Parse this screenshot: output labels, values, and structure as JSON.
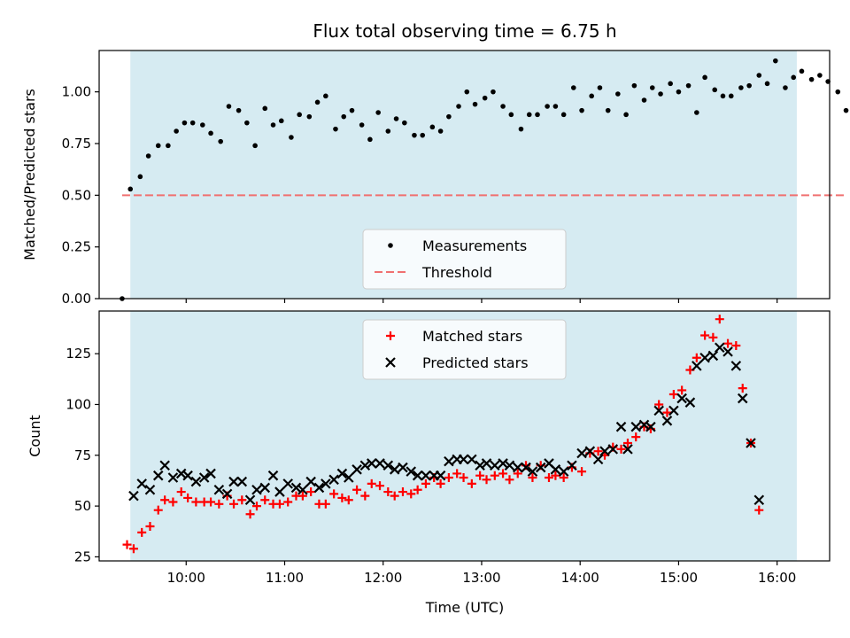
{
  "chart_data": [
    {
      "type": "scatter",
      "title": "Flux total observing time = 6.75 h",
      "ylabel": "Matched/Predicted stars",
      "ylim": [
        0,
        1.2
      ],
      "xlim": [
        "09:07",
        "16:32"
      ],
      "yticks": [
        "0.00",
        "0.25",
        "0.50",
        "0.75",
        "1.00"
      ],
      "observing_window": [
        "09:26",
        "16:12"
      ],
      "series": [
        {
          "name": "Measurements",
          "marker": "dot",
          "color": "#000000",
          "points": [
            [
              "09:21",
              0.0
            ],
            [
              "09:26",
              0.53
            ],
            [
              "09:32",
              0.59
            ],
            [
              "09:37",
              0.69
            ],
            [
              "09:43",
              0.74
            ],
            [
              "09:49",
              0.74
            ],
            [
              "09:54",
              0.81
            ],
            [
              "09:59",
              0.85
            ],
            [
              "10:04",
              0.85
            ],
            [
              "10:10",
              0.84
            ],
            [
              "10:15",
              0.8
            ],
            [
              "10:21",
              0.76
            ],
            [
              "10:26",
              0.93
            ],
            [
              "10:32",
              0.91
            ],
            [
              "10:37",
              0.85
            ],
            [
              "10:42",
              0.74
            ],
            [
              "10:48",
              0.92
            ],
            [
              "10:53",
              0.84
            ],
            [
              "10:58",
              0.86
            ],
            [
              "11:04",
              0.78
            ],
            [
              "11:09",
              0.89
            ],
            [
              "11:15",
              0.88
            ],
            [
              "11:20",
              0.95
            ],
            [
              "11:25",
              0.98
            ],
            [
              "11:31",
              0.82
            ],
            [
              "11:36",
              0.88
            ],
            [
              "11:41",
              0.91
            ],
            [
              "11:47",
              0.84
            ],
            [
              "11:52",
              0.77
            ],
            [
              "11:57",
              0.9
            ],
            [
              "12:03",
              0.81
            ],
            [
              "12:08",
              0.87
            ],
            [
              "12:13",
              0.85
            ],
            [
              "12:19",
              0.79
            ],
            [
              "12:24",
              0.79
            ],
            [
              "12:30",
              0.83
            ],
            [
              "12:35",
              0.81
            ],
            [
              "12:40",
              0.88
            ],
            [
              "12:46",
              0.93
            ],
            [
              "12:51",
              1.0
            ],
            [
              "12:56",
              0.94
            ],
            [
              "13:02",
              0.97
            ],
            [
              "13:07",
              1.0
            ],
            [
              "13:13",
              0.93
            ],
            [
              "13:18",
              0.89
            ],
            [
              "13:24",
              0.82
            ],
            [
              "13:29",
              0.89
            ],
            [
              "13:34",
              0.89
            ],
            [
              "13:40",
              0.93
            ],
            [
              "13:45",
              0.93
            ],
            [
              "13:50",
              0.89
            ],
            [
              "13:56",
              1.02
            ],
            [
              "14:01",
              0.91
            ],
            [
              "14:07",
              0.98
            ],
            [
              "14:12",
              1.02
            ],
            [
              "14:17",
              0.91
            ],
            [
              "14:23",
              0.99
            ],
            [
              "14:28",
              0.89
            ],
            [
              "14:33",
              1.03
            ],
            [
              "14:39",
              0.96
            ],
            [
              "14:44",
              1.02
            ],
            [
              "14:49",
              0.99
            ],
            [
              "14:55",
              1.04
            ],
            [
              "15:00",
              1.0
            ],
            [
              "15:06",
              1.03
            ],
            [
              "15:11",
              0.9
            ],
            [
              "15:16",
              1.07
            ],
            [
              "15:22",
              1.01
            ],
            [
              "15:27",
              0.98
            ],
            [
              "15:32",
              0.98
            ],
            [
              "15:38",
              1.02
            ],
            [
              "15:43",
              1.03
            ],
            [
              "15:49",
              1.08
            ],
            [
              "15:54",
              1.04
            ],
            [
              "15:59",
              1.15
            ],
            [
              "16:05",
              1.02
            ],
            [
              "16:10",
              1.07
            ],
            [
              "16:15",
              1.1
            ],
            [
              "16:21",
              1.06
            ],
            [
              "16:26",
              1.08
            ],
            [
              "16:31",
              1.05
            ],
            [
              "16:37",
              1.0
            ],
            [
              "16:42",
              0.91
            ]
          ]
        },
        {
          "name": "Threshold",
          "style": "dashed-line",
          "color": "#f07070",
          "x": [
            "09:21",
            "16:42"
          ],
          "y": 0.5
        }
      ],
      "legend": "lower-center",
      "grid": false
    },
    {
      "type": "scatter",
      "xlabel": "Time (UTC)",
      "ylabel": "Count",
      "ylim": [
        23,
        146
      ],
      "xlim": [
        "09:07",
        "16:32"
      ],
      "xticks": [
        "10:00",
        "11:00",
        "12:00",
        "13:00",
        "14:00",
        "15:00",
        "16:00"
      ],
      "yticks": [
        "25",
        "50",
        "75",
        "100",
        "125"
      ],
      "observing_window": [
        "09:26",
        "16:12"
      ],
      "series": [
        {
          "name": "Matched stars",
          "marker": "plus",
          "color": "#ff0000",
          "points": [
            [
              "09:24",
              31
            ],
            [
              "09:28",
              29
            ],
            [
              "09:33",
              37
            ],
            [
              "09:38",
              40
            ],
            [
              "09:43",
              48
            ],
            [
              "09:47",
              53
            ],
            [
              "09:52",
              52
            ],
            [
              "09:57",
              57
            ],
            [
              "10:01",
              54
            ],
            [
              "10:06",
              52
            ],
            [
              "10:11",
              52
            ],
            [
              "10:15",
              52
            ],
            [
              "10:20",
              51
            ],
            [
              "10:25",
              55
            ],
            [
              "10:29",
              51
            ],
            [
              "10:34",
              53
            ],
            [
              "10:39",
              46
            ],
            [
              "10:43",
              50
            ],
            [
              "10:48",
              53
            ],
            [
              "10:53",
              51
            ],
            [
              "10:57",
              51
            ],
            [
              "11:02",
              52
            ],
            [
              "11:07",
              55
            ],
            [
              "11:11",
              55
            ],
            [
              "11:16",
              57
            ],
            [
              "11:21",
              51
            ],
            [
              "11:25",
              51
            ],
            [
              "11:30",
              56
            ],
            [
              "11:35",
              54
            ],
            [
              "11:39",
              53
            ],
            [
              "11:44",
              58
            ],
            [
              "11:49",
              55
            ],
            [
              "11:53",
              61
            ],
            [
              "11:58",
              60
            ],
            [
              "12:03",
              57
            ],
            [
              "12:07",
              55
            ],
            [
              "12:12",
              57
            ],
            [
              "12:17",
              56
            ],
            [
              "12:21",
              58
            ],
            [
              "12:26",
              61
            ],
            [
              "12:31",
              64
            ],
            [
              "12:35",
              61
            ],
            [
              "12:40",
              64
            ],
            [
              "12:45",
              66
            ],
            [
              "12:49",
              64
            ],
            [
              "12:54",
              61
            ],
            [
              "12:59",
              65
            ],
            [
              "13:03",
              63
            ],
            [
              "13:08",
              65
            ],
            [
              "13:13",
              66
            ],
            [
              "13:17",
              63
            ],
            [
              "13:22",
              66
            ],
            [
              "13:27",
              70
            ],
            [
              "13:31",
              64
            ],
            [
              "13:36",
              70
            ],
            [
              "13:41",
              64
            ],
            [
              "13:45",
              65
            ],
            [
              "13:50",
              64
            ],
            [
              "13:55",
              69
            ],
            [
              "14:01",
              67
            ],
            [
              "14:06",
              76
            ],
            [
              "14:11",
              77
            ],
            [
              "14:15",
              75
            ],
            [
              "14:20",
              79
            ],
            [
              "14:25",
              78
            ],
            [
              "14:29",
              81
            ],
            [
              "14:34",
              84
            ],
            [
              "14:39",
              89
            ],
            [
              "14:43",
              88
            ],
            [
              "14:48",
              100
            ],
            [
              "14:53",
              96
            ],
            [
              "14:57",
              105
            ],
            [
              "15:02",
              107
            ],
            [
              "15:07",
              117
            ],
            [
              "15:11",
              123
            ],
            [
              "15:16",
              134
            ],
            [
              "15:21",
              133
            ],
            [
              "15:25",
              142
            ],
            [
              "15:30",
              130
            ],
            [
              "15:35",
              129
            ],
            [
              "15:39",
              108
            ],
            [
              "15:44",
              81
            ],
            [
              "15:49",
              48
            ]
          ]
        },
        {
          "name": "Predicted stars",
          "marker": "x",
          "color": "#000000",
          "points": [
            [
              "09:28",
              55
            ],
            [
              "09:33",
              61
            ],
            [
              "09:38",
              58
            ],
            [
              "09:43",
              65
            ],
            [
              "09:47",
              70
            ],
            [
              "09:52",
              64
            ],
            [
              "09:57",
              66
            ],
            [
              "10:01",
              65
            ],
            [
              "10:06",
              62
            ],
            [
              "10:11",
              64
            ],
            [
              "10:15",
              66
            ],
            [
              "10:20",
              58
            ],
            [
              "10:25",
              56
            ],
            [
              "10:29",
              62
            ],
            [
              "10:34",
              62
            ],
            [
              "10:39",
              53
            ],
            [
              "10:43",
              58
            ],
            [
              "10:48",
              59
            ],
            [
              "10:53",
              65
            ],
            [
              "10:57",
              57
            ],
            [
              "11:02",
              61
            ],
            [
              "11:07",
              59
            ],
            [
              "11:11",
              58
            ],
            [
              "11:16",
              62
            ],
            [
              "11:21",
              59
            ],
            [
              "11:25",
              61
            ],
            [
              "11:30",
              63
            ],
            [
              "11:35",
              66
            ],
            [
              "11:39",
              64
            ],
            [
              "11:44",
              68
            ],
            [
              "11:49",
              70
            ],
            [
              "11:53",
              71
            ],
            [
              "11:58",
              71
            ],
            [
              "12:03",
              70
            ],
            [
              "12:07",
              68
            ],
            [
              "12:12",
              69
            ],
            [
              "12:17",
              67
            ],
            [
              "12:21",
              65
            ],
            [
              "12:26",
              65
            ],
            [
              "12:31",
              65
            ],
            [
              "12:35",
              65
            ],
            [
              "12:40",
              72
            ],
            [
              "12:45",
              73
            ],
            [
              "12:49",
              73
            ],
            [
              "12:54",
              73
            ],
            [
              "12:59",
              70
            ],
            [
              "13:03",
              71
            ],
            [
              "13:08",
              70
            ],
            [
              "13:13",
              71
            ],
            [
              "13:17",
              70
            ],
            [
              "13:22",
              69
            ],
            [
              "13:27",
              69
            ],
            [
              "13:31",
              67
            ],
            [
              "13:36",
              69
            ],
            [
              "13:41",
              71
            ],
            [
              "13:45",
              68
            ],
            [
              "13:50",
              67
            ],
            [
              "13:55",
              70
            ],
            [
              "14:01",
              76
            ],
            [
              "14:06",
              77
            ],
            [
              "14:11",
              73
            ],
            [
              "14:15",
              77
            ],
            [
              "14:20",
              78
            ],
            [
              "14:25",
              89
            ],
            [
              "14:29",
              78
            ],
            [
              "14:34",
              89
            ],
            [
              "14:39",
              90
            ],
            [
              "14:43",
              89
            ],
            [
              "14:48",
              97
            ],
            [
              "14:53",
              92
            ],
            [
              "14:57",
              97
            ],
            [
              "15:02",
              103
            ],
            [
              "15:07",
              101
            ],
            [
              "15:11",
              119
            ],
            [
              "15:16",
              123
            ],
            [
              "15:21",
              124
            ],
            [
              "15:25",
              128
            ],
            [
              "15:30",
              126
            ],
            [
              "15:35",
              119
            ],
            [
              "15:39",
              103
            ],
            [
              "15:44",
              81
            ],
            [
              "15:49",
              53
            ]
          ]
        }
      ],
      "legend": "top-center",
      "grid": false
    }
  ]
}
